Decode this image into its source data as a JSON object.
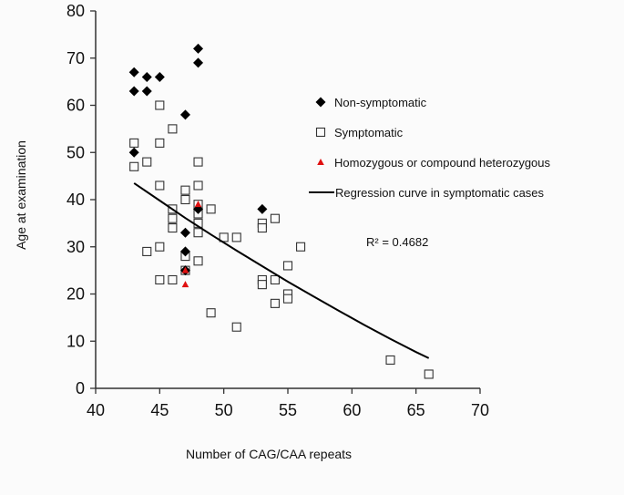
{
  "chart_data": {
    "type": "scatter",
    "title": "",
    "xlabel": "Number of CAG/CAA repeats",
    "ylabel": "Age at examination",
    "xlim": [
      40,
      70
    ],
    "ylim": [
      0,
      80
    ],
    "xticks": [
      40,
      45,
      50,
      55,
      60,
      65,
      70
    ],
    "yticks": [
      0,
      10,
      20,
      30,
      40,
      50,
      60,
      70,
      80
    ],
    "grid": false,
    "legend_position": "right",
    "series": [
      {
        "name": "Non-symptomatic",
        "marker": "diamond",
        "color": "#000000",
        "points": [
          [
            43,
            67
          ],
          [
            43,
            63
          ],
          [
            43,
            50
          ],
          [
            44,
            66
          ],
          [
            44,
            63
          ],
          [
            45,
            66
          ],
          [
            47,
            58
          ],
          [
            47,
            33
          ],
          [
            47,
            29
          ],
          [
            47,
            25
          ],
          [
            48,
            72
          ],
          [
            48,
            69
          ],
          [
            48,
            38
          ],
          [
            53,
            38
          ]
        ]
      },
      {
        "name": "Symptomatic",
        "marker": "open-square",
        "color": "#000000",
        "points": [
          [
            43,
            52
          ],
          [
            43,
            47
          ],
          [
            44,
            48
          ],
          [
            44,
            29
          ],
          [
            45,
            60
          ],
          [
            45,
            52
          ],
          [
            45,
            43
          ],
          [
            45,
            30
          ],
          [
            45,
            23
          ],
          [
            46,
            55
          ],
          [
            46,
            38
          ],
          [
            46,
            36
          ],
          [
            46,
            34
          ],
          [
            46,
            23
          ],
          [
            47,
            42
          ],
          [
            47,
            40
          ],
          [
            47,
            28
          ],
          [
            47,
            25
          ],
          [
            48,
            48
          ],
          [
            48,
            43
          ],
          [
            48,
            39
          ],
          [
            48,
            37
          ],
          [
            48,
            35
          ],
          [
            48,
            33
          ],
          [
            48,
            27
          ],
          [
            49,
            38
          ],
          [
            49,
            16
          ],
          [
            50,
            32
          ],
          [
            51,
            32
          ],
          [
            51,
            13
          ],
          [
            53,
            35
          ],
          [
            53,
            34
          ],
          [
            53,
            23
          ],
          [
            53,
            22
          ],
          [
            54,
            36
          ],
          [
            54,
            23
          ],
          [
            54,
            18
          ],
          [
            55,
            26
          ],
          [
            55,
            20
          ],
          [
            55,
            19
          ],
          [
            56,
            30
          ],
          [
            63,
            6
          ],
          [
            66,
            3
          ]
        ]
      },
      {
        "name": "Homozygous or compound heterozygous",
        "marker": "triangle",
        "color": "#e01010",
        "points": [
          [
            47,
            25
          ],
          [
            47,
            22
          ],
          [
            48,
            39
          ]
        ]
      },
      {
        "name": "Regression curve in symptomatic cases",
        "marker": "line",
        "color": "#000000",
        "points": [
          [
            43,
            43.5
          ],
          [
            45,
            39.8
          ],
          [
            47,
            36.1
          ],
          [
            49,
            32.6
          ],
          [
            51,
            29.2
          ],
          [
            53,
            25.9
          ],
          [
            55,
            22.6
          ],
          [
            57,
            19.5
          ],
          [
            59,
            16.4
          ],
          [
            61,
            13.4
          ],
          [
            63,
            10.5
          ],
          [
            65,
            7.7
          ],
          [
            66,
            6.4
          ]
        ]
      }
    ],
    "annotation": "R² = 0.4682"
  }
}
